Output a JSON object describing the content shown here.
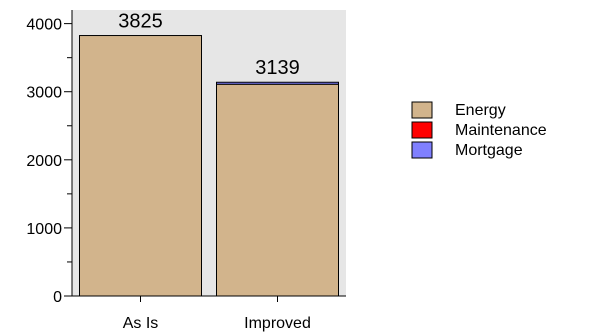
{
  "chart_data": {
    "type": "bar",
    "stacked": true,
    "categories": [
      "As Is",
      "Improved"
    ],
    "series": [
      {
        "name": "Energy",
        "color": "#d2b48c",
        "values": [
          3825,
          3110
        ]
      },
      {
        "name": "Maintenance",
        "color": "#ff0000",
        "values": [
          0,
          0
        ]
      },
      {
        "name": "Mortgage",
        "color": "#8080ff",
        "values": [
          0,
          29
        ]
      }
    ],
    "totals": [
      "3825",
      "3139"
    ],
    "yticks": [
      "0",
      "1000",
      "2000",
      "3000",
      "4000"
    ],
    "ylim": [
      0,
      4200
    ],
    "grid": false,
    "plot_background": "#e6e6e6",
    "legend_position": "right"
  }
}
